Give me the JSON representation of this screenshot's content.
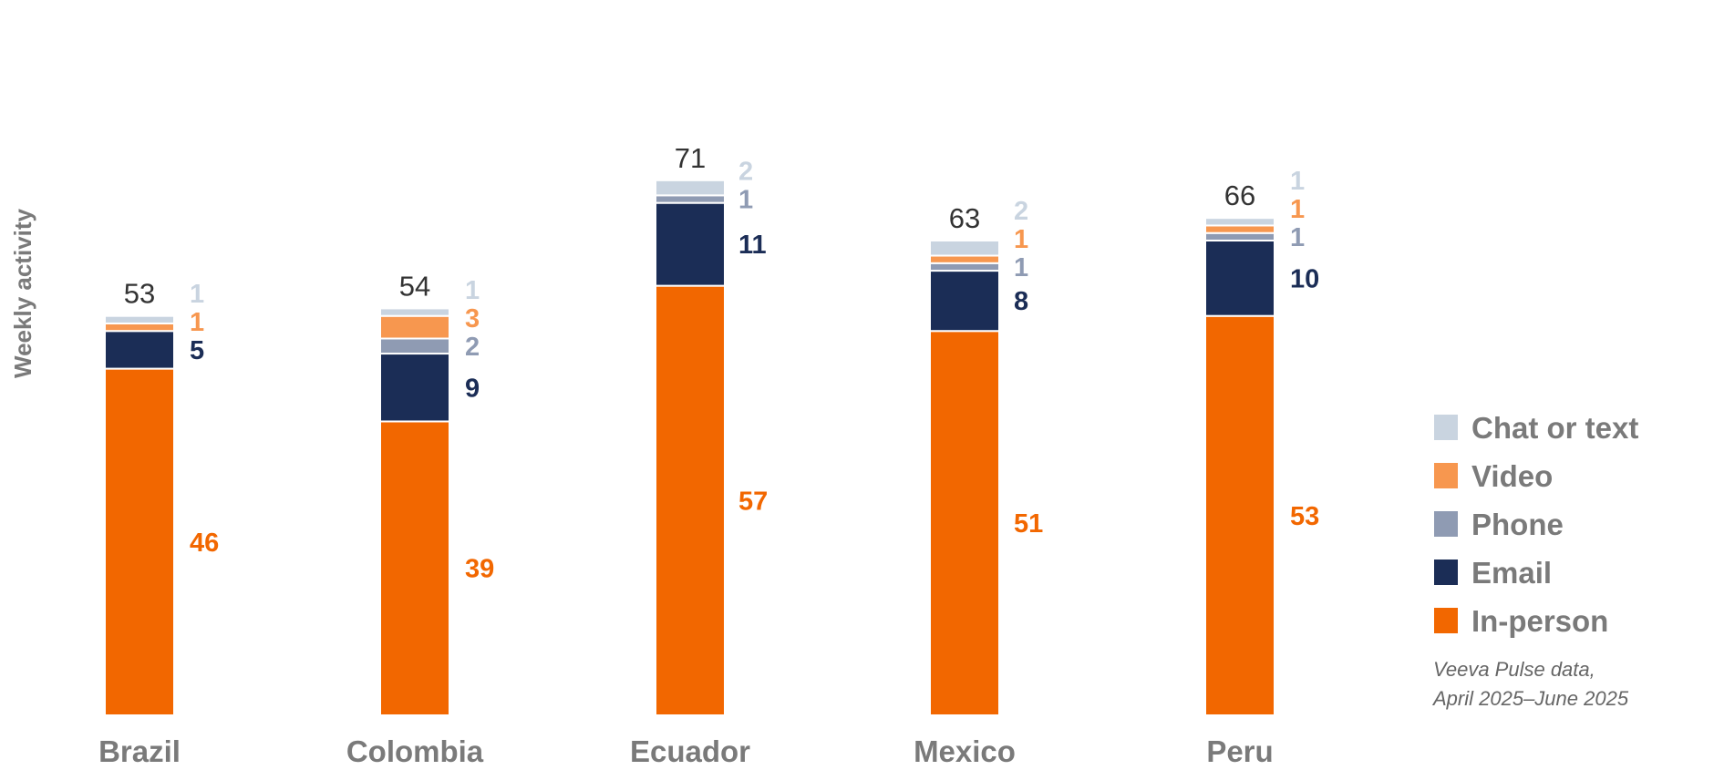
{
  "chart_data": {
    "type": "bar",
    "stacked": true,
    "ylabel": "Weekly activity",
    "categories": [
      "Brazil",
      "Colombia",
      "Ecuador",
      "Mexico",
      "Peru"
    ],
    "totals": [
      53,
      54,
      71,
      63,
      66
    ],
    "series": [
      {
        "name": "In-person",
        "color": "#f26700",
        "values": [
          46,
          39,
          57,
          51,
          53
        ]
      },
      {
        "name": "Email",
        "color": "#1b2d56",
        "values": [
          5,
          9,
          11,
          8,
          10
        ]
      },
      {
        "name": "Phone",
        "color": "#8f9bb3",
        "values": [
          0,
          2,
          1,
          1,
          1
        ]
      },
      {
        "name": "Video",
        "color": "#f7974f",
        "values": [
          1,
          3,
          0,
          1,
          1
        ]
      },
      {
        "name": "Chat or text",
        "color": "#c9d4e0",
        "values": [
          1,
          1,
          2,
          2,
          1
        ]
      }
    ],
    "segment_label_colors": {
      "In-person": "#f26700",
      "Email": "#1b2d56",
      "Phone": "#8f9bb3",
      "Video": "#f7974f",
      "Chat or text": "#c9d4e0"
    },
    "legend": {
      "placement": "right",
      "order": [
        "Chat or text",
        "Video",
        "Phone",
        "Email",
        "In-person"
      ]
    },
    "grid": false
  },
  "source_note": {
    "line1": "Veeva Pulse data,",
    "line2": "April 2025–June 2025"
  }
}
